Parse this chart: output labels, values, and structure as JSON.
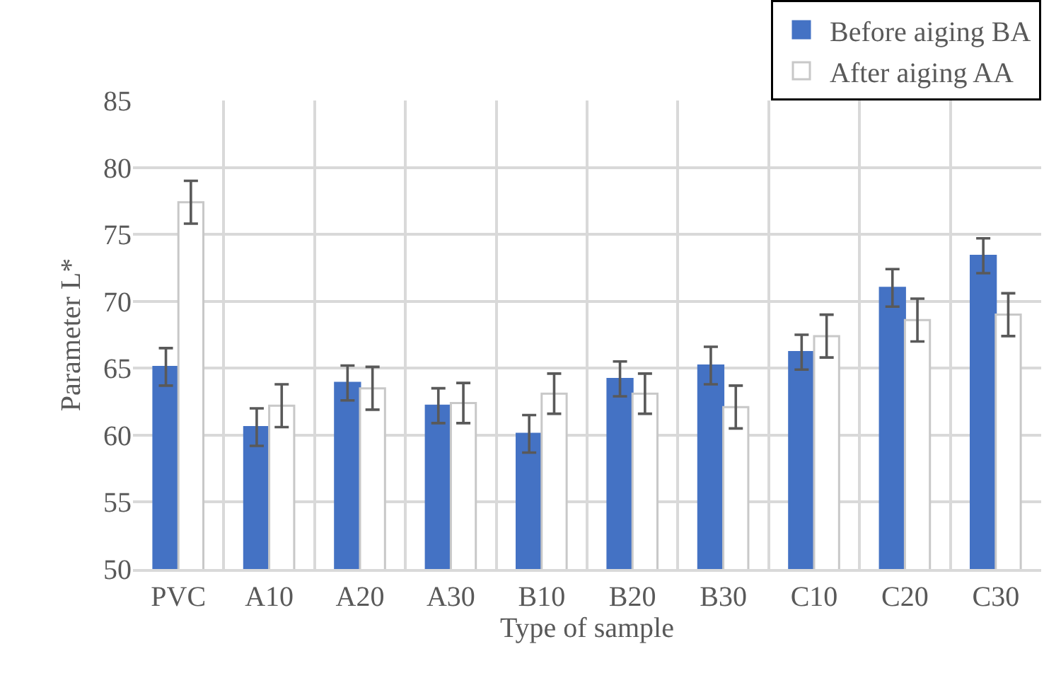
{
  "chart_data": {
    "type": "bar",
    "xlabel": "Type of sample",
    "ylabel": "Parameter L*",
    "categories": [
      "PVC",
      "A10",
      "A20",
      "A30",
      "B10",
      "B20",
      "B30",
      "C10",
      "C20",
      "C30"
    ],
    "series": [
      {
        "name": "Before aiging BA",
        "color": "#4472c4",
        "values": [
          65.1,
          60.6,
          63.9,
          62.2,
          60.1,
          64.2,
          65.2,
          66.2,
          71.0,
          73.4
        ],
        "errors": [
          1.4,
          1.4,
          1.3,
          1.3,
          1.4,
          1.3,
          1.4,
          1.3,
          1.4,
          1.3
        ]
      },
      {
        "name": "After aiging AA",
        "color": "#ffffff",
        "values": [
          77.4,
          62.2,
          63.5,
          62.4,
          63.1,
          63.1,
          62.1,
          67.4,
          68.6,
          69.0
        ],
        "errors": [
          1.6,
          1.6,
          1.6,
          1.5,
          1.5,
          1.5,
          1.6,
          1.6,
          1.6,
          1.6
        ]
      }
    ],
    "ylim": [
      50,
      85
    ],
    "yticks": [
      50,
      55,
      60,
      65,
      70,
      75,
      80,
      85
    ],
    "grid": true,
    "legend": "top right"
  }
}
